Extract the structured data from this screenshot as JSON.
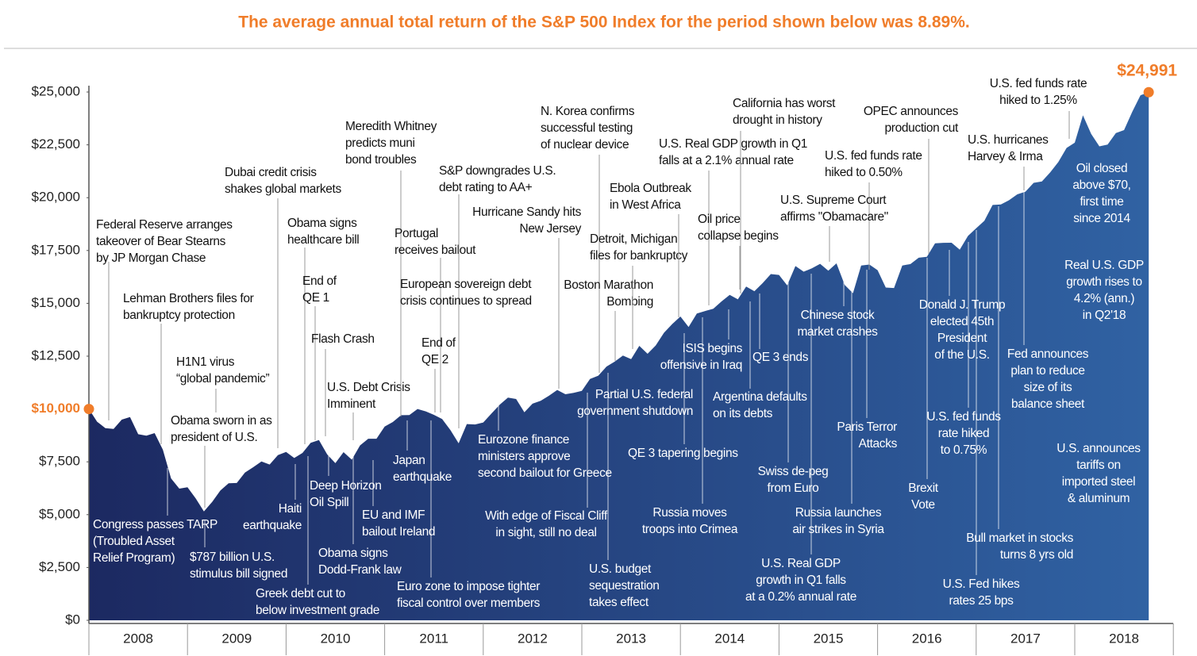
{
  "chart_data": {
    "type": "area",
    "title": "The average annual total return of the S&P 500 Index for the period shown below was 8.89%.",
    "title_color": "#f07d2a",
    "color": "#1c2961",
    "color_end": "#3062a3",
    "start_label": "$10,000",
    "end_label": "$24,991",
    "ylim": [
      0,
      25000
    ],
    "yticks": [
      {
        "value": 0,
        "label": "$0"
      },
      {
        "value": 2500,
        "label": "$2,500"
      },
      {
        "value": 5000,
        "label": "$5,000"
      },
      {
        "value": 7500,
        "label": "$7,500"
      },
      {
        "value": 12500,
        "label": "$12,500"
      },
      {
        "value": 15000,
        "label": "$15,000"
      },
      {
        "value": 17500,
        "label": "$17,500"
      },
      {
        "value": 20000,
        "label": "$20,000"
      },
      {
        "value": 22500,
        "label": "$22,500"
      },
      {
        "value": 25000,
        "label": "$25,000"
      }
    ],
    "xlim": [
      2008,
      2019
    ],
    "xticks": [
      {
        "value": 2008.5,
        "label": "2008"
      },
      {
        "value": 2009.5,
        "label": "2009"
      },
      {
        "value": 2010.5,
        "label": "2010"
      },
      {
        "value": 2011.5,
        "label": "2011"
      },
      {
        "value": 2012.5,
        "label": "2012"
      },
      {
        "value": 2013.5,
        "label": "2013"
      },
      {
        "value": 2014.5,
        "label": "2014"
      },
      {
        "value": 2015.5,
        "label": "2015"
      },
      {
        "value": 2016.5,
        "label": "2016"
      },
      {
        "value": 2017.5,
        "label": "2017"
      },
      {
        "value": 2018.5,
        "label": "2018"
      }
    ],
    "x": [
      2008,
      2008.083,
      2008.167,
      2008.25,
      2008.333,
      2008.417,
      2008.5,
      2008.583,
      2008.667,
      2008.75,
      2008.833,
      2008.917,
      2009,
      2009.083,
      2009.167,
      2009.25,
      2009.333,
      2009.417,
      2009.5,
      2009.583,
      2009.667,
      2009.75,
      2009.833,
      2009.917,
      2010,
      2010.083,
      2010.167,
      2010.25,
      2010.333,
      2010.417,
      2010.5,
      2010.583,
      2010.667,
      2010.75,
      2010.833,
      2010.917,
      2011,
      2011.083,
      2011.167,
      2011.25,
      2011.333,
      2011.417,
      2011.5,
      2011.583,
      2011.667,
      2011.75,
      2011.833,
      2011.917,
      2012,
      2012.083,
      2012.167,
      2012.25,
      2012.333,
      2012.417,
      2012.5,
      2012.583,
      2012.667,
      2012.75,
      2012.833,
      2012.917,
      2013,
      2013.083,
      2013.167,
      2013.25,
      2013.333,
      2013.417,
      2013.5,
      2013.583,
      2013.667,
      2013.75,
      2013.833,
      2013.917,
      2014,
      2014.083,
      2014.167,
      2014.25,
      2014.333,
      2014.417,
      2014.5,
      2014.583,
      2014.667,
      2014.75,
      2014.833,
      2014.917,
      2015,
      2015.083,
      2015.167,
      2015.25,
      2015.333,
      2015.417,
      2015.5,
      2015.583,
      2015.667,
      2015.75,
      2015.833,
      2015.917,
      2016,
      2016.083,
      2016.167,
      2016.25,
      2016.333,
      2016.417,
      2016.5,
      2016.583,
      2016.667,
      2016.75,
      2016.833,
      2016.917,
      2017,
      2017.083,
      2017.167,
      2017.25,
      2017.333,
      2017.417,
      2017.5,
      2017.583,
      2017.667,
      2017.75,
      2017.833,
      2017.917,
      2018,
      2018.083,
      2018.167,
      2018.25,
      2018.333,
      2018.417,
      2018.5,
      2018.583,
      2018.667,
      2018.75
    ],
    "values": [
      10000,
      9400,
      9094,
      9055,
      9496,
      9619,
      8808,
      8734,
      8860,
      8071,
      6715,
      6233,
      6300,
      5769,
      5155,
      5606,
      6143,
      6486,
      6499,
      6991,
      7243,
      7514,
      7374,
      7816,
      7967,
      7681,
      7919,
      8397,
      8530,
      7849,
      7438,
      7959,
      7600,
      8278,
      8593,
      8594,
      9168,
      9385,
      9707,
      9711,
      9999,
      9886,
      9721,
      9523,
      9006,
      8373,
      9288,
      9267,
      9361,
      9781,
      10204,
      10540,
      10474,
      9845,
      10250,
      10392,
      10626,
      10901,
      10699,
      10761,
      10859,
      11421,
      11576,
      12010,
      12242,
      12528,
      12360,
      12989,
      12613,
      13008,
      13606,
      14020,
      14376,
      13879,
      14514,
      14635,
      14743,
      15089,
      15401,
      15189,
      15797,
      15575,
      15955,
      16385,
      16343,
      15852,
      16763,
      16498,
      16656,
      16871,
      16545,
      16891,
      15872,
      15479,
      16785,
      16835,
      16569,
      15747,
      15725,
      16792,
      16857,
      17160,
      17204,
      17839,
      17864,
      17867,
      17542,
      18191,
      18551,
      18903,
      19654,
      19677,
      19879,
      20159,
      20285,
      20702,
      20765,
      21194,
      21688,
      22353,
      22601,
      23895,
      23014,
      22430,
      22516,
      23058,
      23200,
      24063,
      24847,
      24991
    ],
    "annotations": [
      [
        "Federal Reserve arranges",
        "takeover of Bear Stearns",
        "by JP Morgan Chase"
      ],
      [
        "Lehman Brothers files for",
        "bankruptcy protection"
      ],
      [
        "H1N1 virus",
        "“global pandemic”"
      ],
      [
        "Obama sworn in as",
        "president of U.S."
      ],
      [
        "Congress passes TARP",
        "(Troubled Asset",
        "Relief Program)"
      ],
      [
        "$787 billion U.S.",
        "stimulus bill signed"
      ],
      [
        "Dubai credit crisis",
        "shakes global markets"
      ],
      [
        "Obama signs",
        "healthcare bill"
      ],
      [
        "End of",
        "QE 1"
      ],
      [
        "Flash Crash"
      ],
      [
        "U.S. Debt Crisis",
        "Imminent"
      ],
      [
        "Haiti",
        "earthquake"
      ],
      [
        "Deep Horizon",
        "Oil Spill"
      ],
      [
        "EU and IMF",
        "bailout Ireland"
      ],
      [
        "Obama signs",
        "Dodd-Frank law"
      ],
      [
        "Greek debt cut to",
        "below investment grade"
      ],
      [
        "Meredith Whitney",
        "predicts muni",
        "bond troubles"
      ],
      [
        "Portugal",
        "receives bailout"
      ],
      [
        "S&P downgrades U.S.",
        "debt rating to AA+"
      ],
      [
        "European sovereign debt",
        "crisis continues to spread"
      ],
      [
        "End of",
        "QE 2"
      ],
      [
        "Japan",
        "earthquake"
      ],
      [
        "Euro zone to impose tighter",
        "fiscal control over members"
      ],
      [
        "Hurricane Sandy hits",
        "New Jersey"
      ],
      [
        "N. Korea confirms",
        "successful testing",
        "of nuclear device"
      ],
      [
        "Eurozone finance",
        "ministers approve",
        "second bailout for Greece"
      ],
      [
        "With edge of Fiscal Cliff",
        "in sight, still no deal"
      ],
      [
        "Boston Marathon",
        "Bombing"
      ],
      [
        "Partial U.S. federal",
        "government shutdown"
      ],
      [
        "U.S. budget",
        "sequestration",
        "takes effect"
      ],
      [
        "Detroit, Michigan",
        "files for bankruptcy"
      ],
      [
        "Ebola Outbreak",
        "in West Africa"
      ],
      [
        "U.S. Real GDP growth in Q1",
        "falls at a 2.1% annual rate"
      ],
      [
        "QE 3 tapering begins"
      ],
      [
        "ISIS begins",
        "offensive in Iraq"
      ],
      [
        "Russia moves",
        "troops into Crimea"
      ],
      [
        "California has worst",
        "drought in history"
      ],
      [
        "Oil price",
        "collapse begins"
      ],
      [
        "QE 3 ends"
      ],
      [
        "Argentina defaults",
        "on its debts"
      ],
      [
        "Swiss de-peg",
        "from Euro"
      ],
      [
        "U.S. Real GDP",
        "growth in Q1 falls",
        "at a 0.2% annual rate"
      ],
      [
        "U.S. fed funds rate",
        "hiked to 0.50%"
      ],
      [
        "OPEC announces",
        "production cut"
      ],
      [
        "U.S. Supreme Court",
        "affirms \"Obamacare\""
      ],
      [
        "Chinese stock",
        "market crashes"
      ],
      [
        "Paris Terror",
        "Attacks"
      ],
      [
        "Russia launches",
        "air strikes in Syria"
      ],
      [
        "Donald J. Trump",
        "elected 45th",
        "President",
        "of the U.S."
      ],
      [
        "U.S. fed funds",
        "rate hiked",
        "to 0.75%"
      ],
      [
        "Brexit",
        "Vote"
      ],
      [
        "U.S. hurricanes",
        "Harvey & Irma"
      ],
      [
        "U.S. fed funds rate",
        "hiked to 1.25%"
      ],
      [
        "Oil closed",
        "above $70,",
        "first time",
        "since 2014"
      ],
      [
        "Real U.S. GDP",
        "growth rises to",
        "4.2% (ann.)",
        "in Q2'18"
      ],
      [
        "Fed announces",
        "plan to reduce",
        "size of its",
        "balance sheet"
      ],
      [
        "U.S. announces",
        "tariffs on",
        "imported steel",
        "& aluminum"
      ],
      [
        "Bull market in stocks",
        "turns 8 yrs old"
      ],
      [
        "U.S. Fed hikes",
        "rates 25 bps"
      ]
    ]
  }
}
